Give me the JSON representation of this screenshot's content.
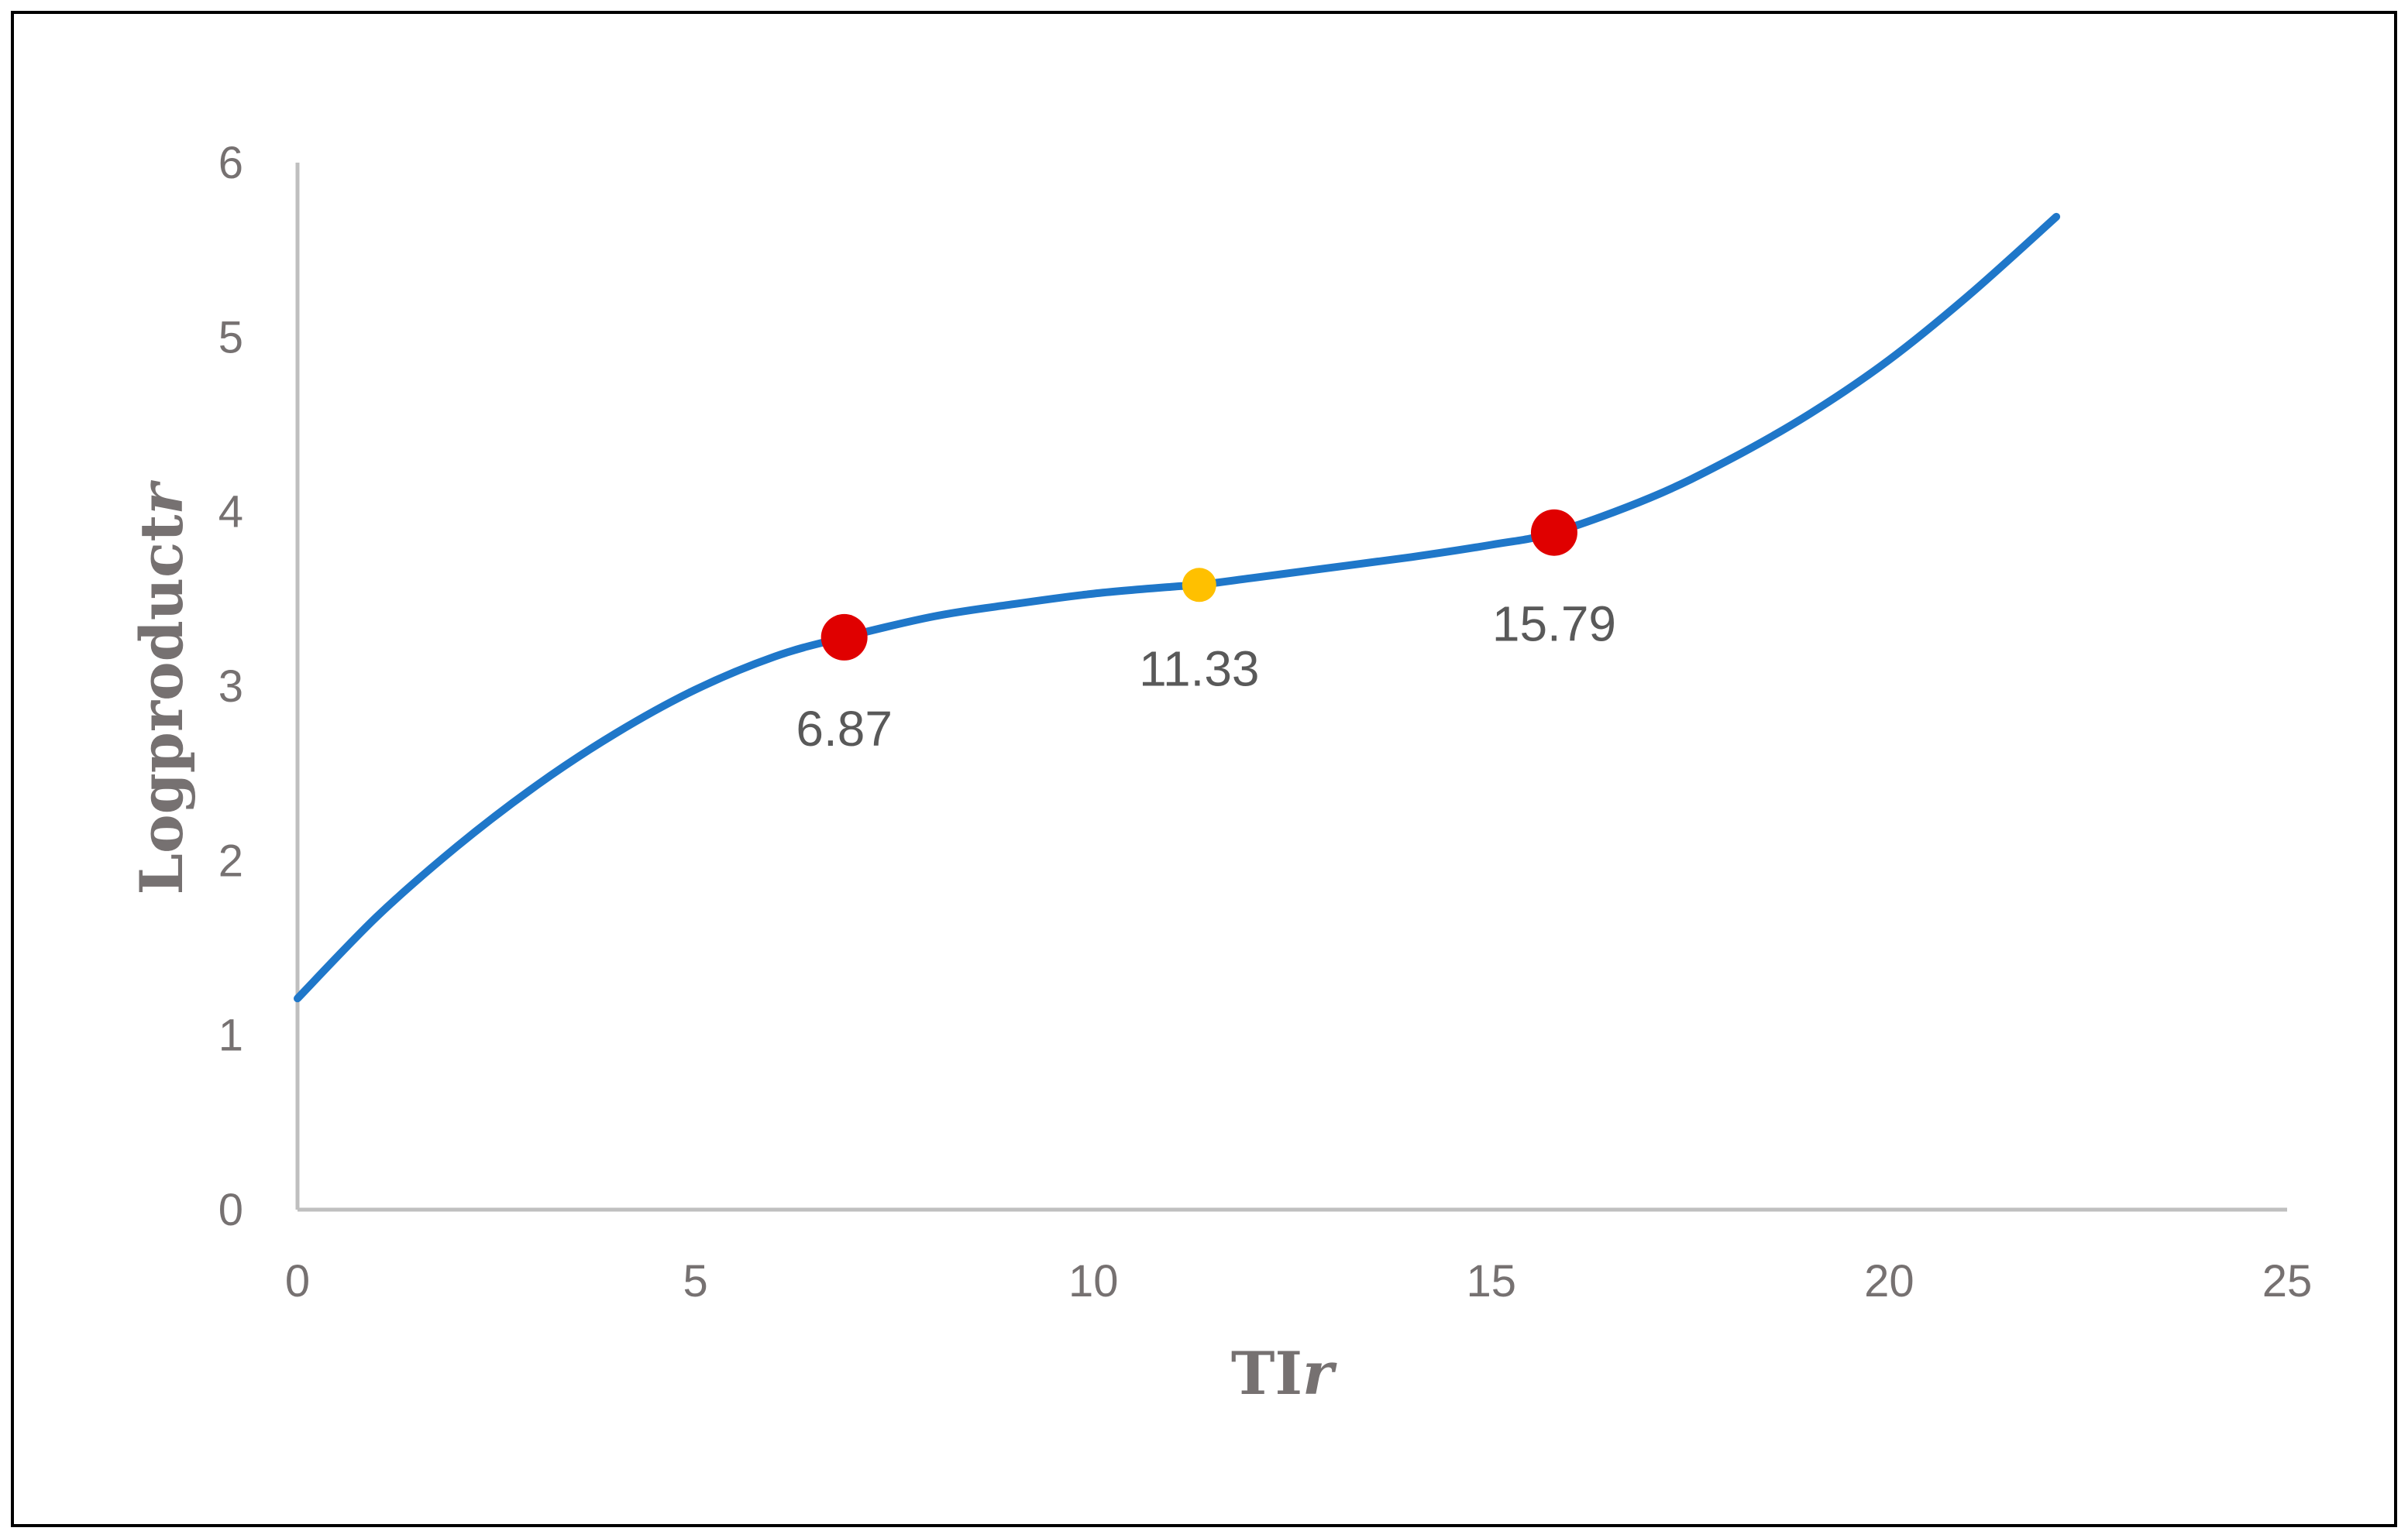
{
  "chart_data": {
    "type": "line",
    "xlabel": "TI",
    "xlabel_italic_suffix": "r",
    "ylabel": "Logproduct",
    "ylabel_italic_suffix": "r",
    "xlim": [
      0,
      25
    ],
    "ylim": [
      0,
      6
    ],
    "xticks": [
      0,
      5,
      10,
      15,
      20,
      25
    ],
    "yticks": [
      0,
      1,
      2,
      3,
      4,
      5,
      6
    ],
    "xtick_labels": [
      "0",
      "5",
      "10",
      "15",
      "20",
      "25"
    ],
    "ytick_labels": [
      "0",
      "1",
      "2",
      "3",
      "4",
      "5",
      "6"
    ],
    "grid": false,
    "legend": false,
    "line_color": "#1F77C9",
    "axis_color": "#BFBFBF",
    "series": [
      {
        "x": [
          0,
          1,
          2,
          3,
          4,
          5,
          6,
          6.87,
          8,
          9,
          10,
          11,
          11.33,
          12,
          13,
          14,
          15,
          15.79,
          17,
          18,
          19,
          20,
          21,
          22.1
        ],
        "y": [
          1.21,
          1.68,
          2.08,
          2.43,
          2.73,
          2.98,
          3.17,
          3.28,
          3.4,
          3.47,
          3.53,
          3.57,
          3.58,
          3.62,
          3.68,
          3.74,
          3.81,
          3.88,
          4.08,
          4.3,
          4.56,
          4.87,
          5.24,
          5.69
        ]
      }
    ],
    "markers": [
      {
        "x": 6.87,
        "y": 3.28,
        "label": "6.87",
        "color": "#E00000",
        "size": "large"
      },
      {
        "x": 11.33,
        "y": 3.58,
        "label": "11.33",
        "color": "#FFC000",
        "size": "small"
      },
      {
        "x": 15.79,
        "y": 3.88,
        "label": "15.79",
        "color": "#E00000",
        "size": "large"
      }
    ]
  }
}
